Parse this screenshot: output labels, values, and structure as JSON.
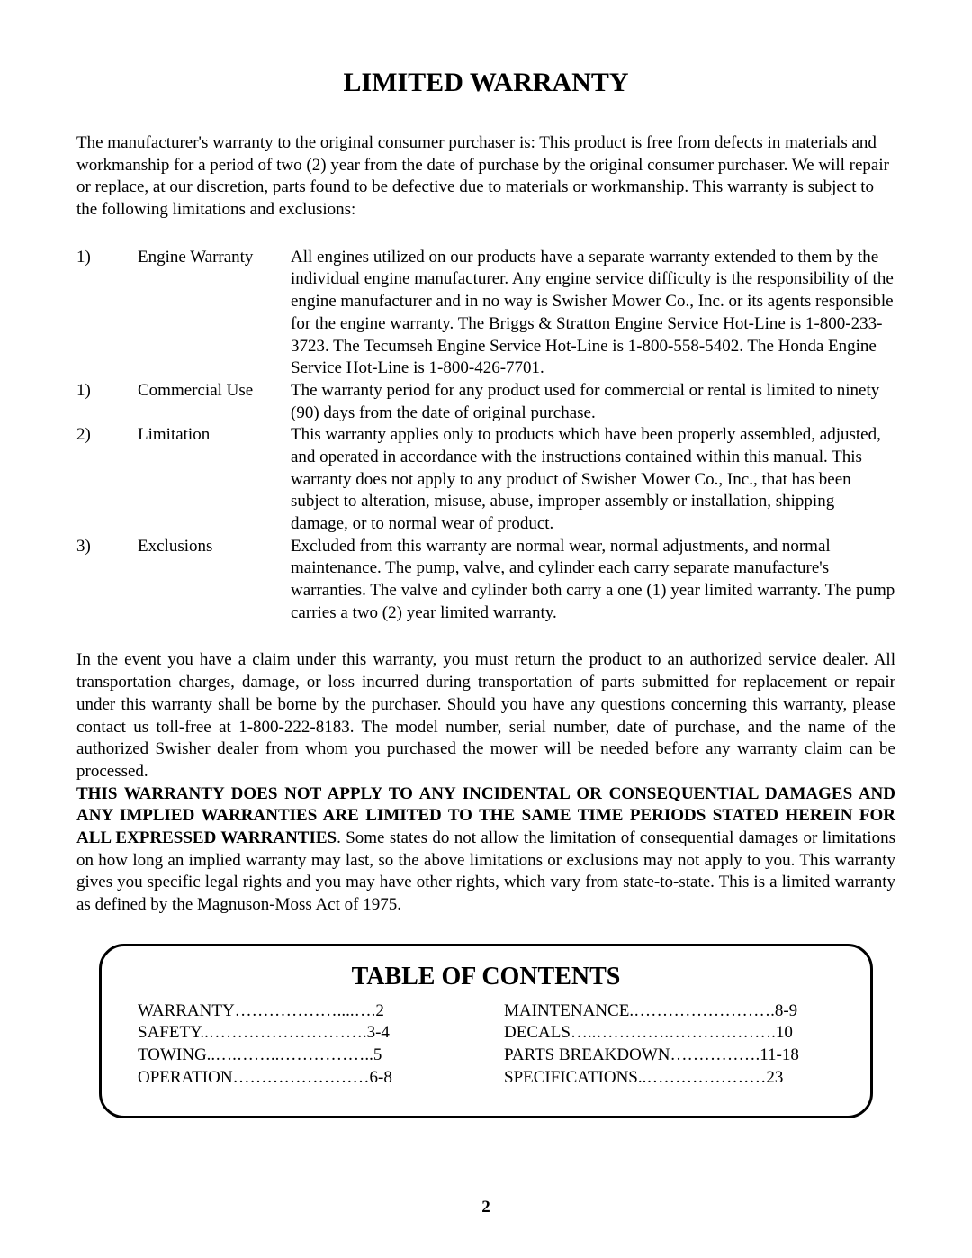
{
  "title": "LIMITED WARRANTY",
  "intro": "The manufacturer's warranty to the original consumer purchaser is:  This product is free from defects in materials and workmanship for a period of  two (2) year from the date of purchase by the original consumer purchaser.  We will repair or replace, at our discretion, parts found to be defective due to materials or workmanship.  This warranty is subject to the following limitations and exclusions:",
  "items": [
    {
      "number": "1)",
      "label": "Engine Warranty",
      "desc": "All engines utilized on our products have a separate warranty extended to them by the individual engine manufacturer. Any engine service difficulty is the responsibility of the engine manufacturer and in no way is Swisher Mower Co., Inc. or its agents responsible for the engine warranty. The Briggs & Stratton Engine Service Hot-Line is 1-800-233-3723. The Tecumseh Engine Service Hot-Line is 1-800-558-5402. The Honda Engine Service Hot-Line is 1-800-426-7701."
    },
    {
      "number": "1)",
      "label": "Commercial Use",
      "desc": "The warranty period for any product used for commercial or rental is limited to ninety (90) days from the date of original purchase."
    },
    {
      "number": "2)",
      "label": "Limitation",
      "desc": "This warranty applies only to products which have been properly assembled, adjusted, and operated in accordance with the instructions contained within this manual. This warranty does not apply to any product of Swisher Mower Co., Inc., that has been subject to alteration, misuse, abuse, improper assembly or installation, shipping damage, or to normal wear of product."
    },
    {
      "number": "3)",
      "label": "Exclusions",
      "desc": "Excluded from this warranty are normal wear, normal adjustments, and normal maintenance. The pump, valve, and cylinder each carry separate manufacture's warranties. The valve and cylinder both carry a one (1) year limited warranty. The pump carries a two (2) year limited warranty."
    }
  ],
  "claim": "In the event you have a claim under this warranty, you must return the product to an authorized service dealer.  All transportation charges, damage, or loss incurred during transportation of parts submitted for replacement or repair under this warranty shall be borne by the purchaser.  Should you have any questions concerning this warranty, please contact us toll-free at 1-800-222-8183.  The model number, serial number, date of purchase, and the name of the authorized Swisher dealer from whom you purchased the mower will be needed before any warranty claim can be processed.",
  "disclaimerBold": "THIS WARRANTY DOES NOT APPLY TO ANY INCIDENTAL OR CONSEQUENTIAL DAMAGES AND ANY IMPLIED WARRANTIES ARE LIMITED TO THE SAME TIME PERIODS STATED HEREIN FOR ALL EXPRESSED WARRANTIES",
  "disclaimerRest": ".  Some states do not allow the limitation of consequential damages or limitations on how long an implied warranty may last, so the above limitations or exclusions may not apply to you.  This warranty gives you specific legal rights and you may have other rights, which vary from state-to-state. This is a limited warranty as defined by the Magnuson-Moss Act of 1975.",
  "toc": {
    "title": "TABLE OF CONTENTS",
    "left": [
      {
        "text": "WARRANTY………………....….2"
      },
      {
        "text": "SAFETY..……………………….3-4"
      },
      {
        "text": "TOWING..….……..……………..5"
      },
      {
        "text": "OPERATION……………………6-8"
      }
    ],
    "right": [
      {
        "text": "MAINTENANCE.…………………….8-9"
      },
      {
        "text": "DECALS…..………….……………….10"
      },
      {
        "text": "PARTS BREAKDOWN…………….11-18"
      },
      {
        "text": "SPECIFICATIONS..…………………23"
      }
    ]
  },
  "pageNumber": "2"
}
